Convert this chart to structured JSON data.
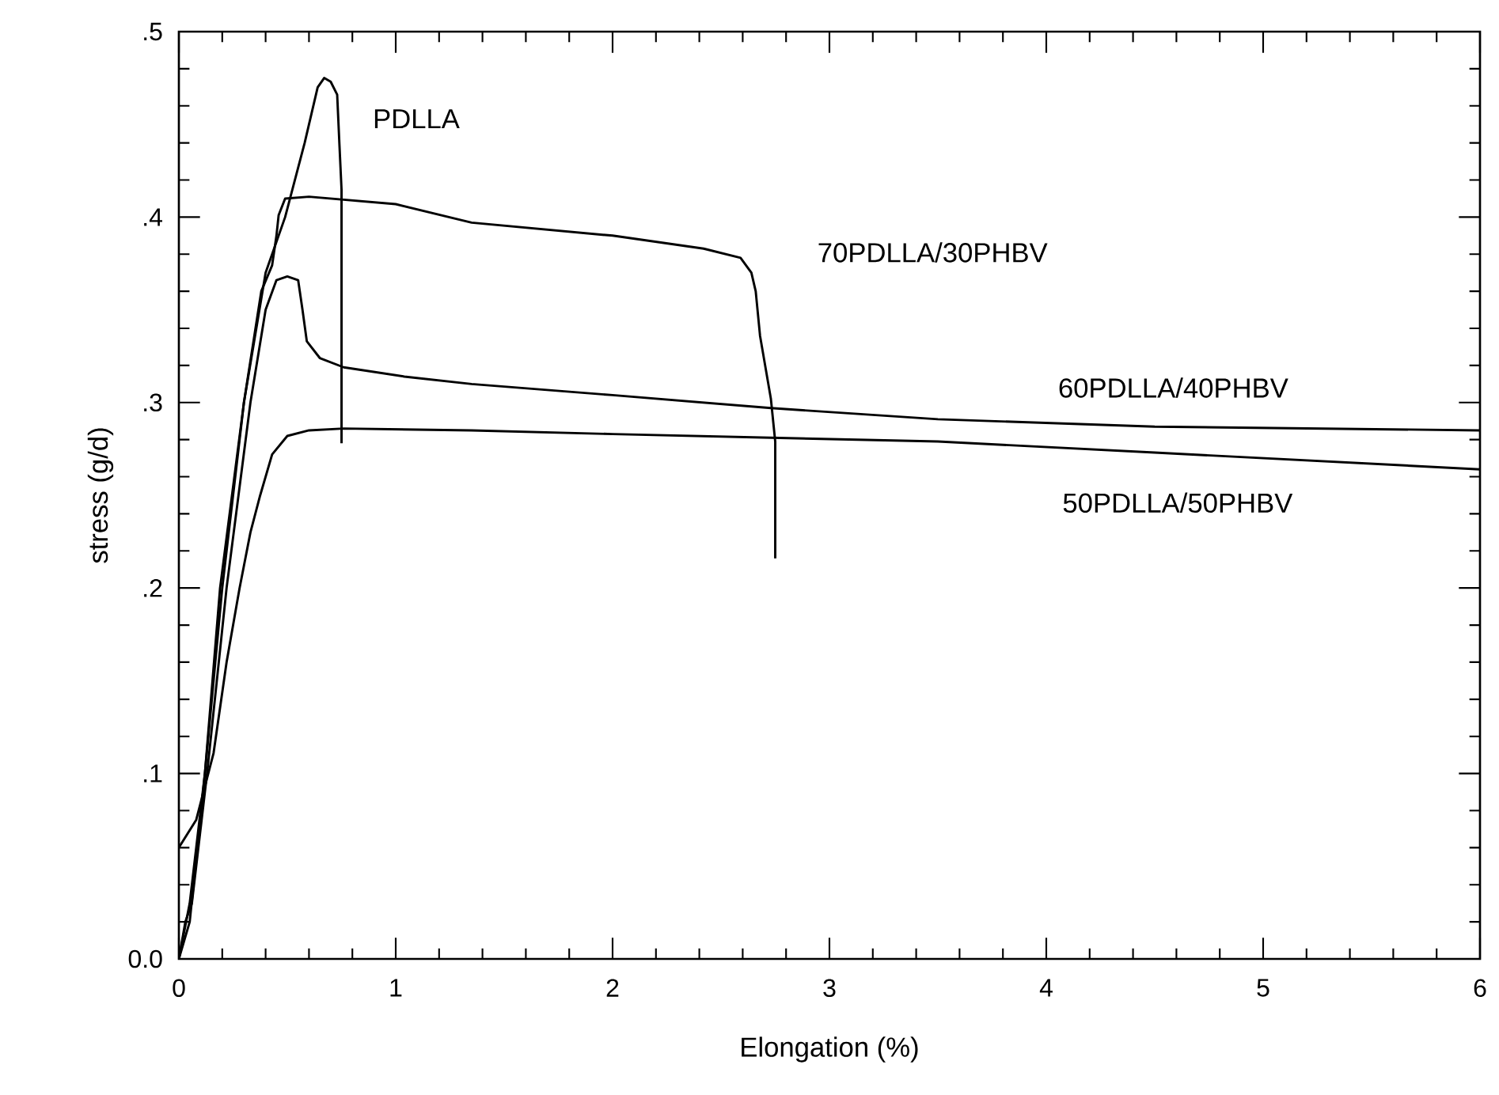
{
  "chart_data": {
    "type": "line",
    "xlabel": "Elongation (%)",
    "ylabel": "stress (g/d)",
    "xlim": [
      0,
      6
    ],
    "ylim": [
      0,
      0.5
    ],
    "xticks": [
      0,
      1,
      2,
      3,
      4,
      5,
      6
    ],
    "yticks": [
      {
        "value": 0,
        "label": "0.0"
      },
      {
        "value": 0.1,
        "label": ".1"
      },
      {
        "value": 0.2,
        "label": ".2"
      },
      {
        "value": 0.3,
        "label": ".3"
      },
      {
        "value": 0.4,
        "label": ".4"
      },
      {
        "value": 0.5,
        "label": ".5"
      }
    ],
    "series": [
      {
        "name": "PDLLA",
        "color": "#000000",
        "x": [
          0,
          0.05,
          0.12,
          0.19,
          0.3,
          0.4,
          0.49,
          0.58,
          0.64,
          0.67,
          0.7,
          0.73,
          0.74,
          0.75,
          0.75
        ],
        "values": [
          0,
          0.03,
          0.1,
          0.2,
          0.3,
          0.37,
          0.4,
          0.44,
          0.47,
          0.475,
          0.473,
          0.466,
          0.44,
          0.415,
          0.278
        ]
      },
      {
        "name": "70PDLLA/30PHBV",
        "color": "#000000",
        "x": [
          0,
          0.05,
          0.12,
          0.2,
          0.3,
          0.38,
          0.43,
          0.45,
          0.46,
          0.49,
          0.6,
          1.0,
          1.35,
          2.0,
          2.42,
          2.59,
          2.64,
          2.66,
          2.68,
          2.73,
          2.75,
          2.75
        ],
        "values": [
          0,
          0.02,
          0.1,
          0.2,
          0.3,
          0.36,
          0.374,
          0.39,
          0.401,
          0.41,
          0.411,
          0.407,
          0.397,
          0.39,
          0.383,
          0.378,
          0.37,
          0.36,
          0.336,
          0.302,
          0.279,
          0.216
        ]
      },
      {
        "name": "60PDLLA/40PHBV",
        "color": "#000000",
        "x": [
          0,
          0.03,
          0.06,
          0.13,
          0.22,
          0.33,
          0.4,
          0.45,
          0.5,
          0.55,
          0.57,
          0.59,
          0.65,
          0.76,
          1.04,
          1.35,
          2.0,
          2.73,
          3.5,
          4.5,
          6.0
        ],
        "values": [
          0,
          0.02,
          0.03,
          0.1,
          0.2,
          0.3,
          0.35,
          0.366,
          0.368,
          0.366,
          0.35,
          0.333,
          0.324,
          0.319,
          0.314,
          0.31,
          0.304,
          0.297,
          0.291,
          0.287,
          0.285
        ]
      },
      {
        "name": "50PDLLA/50PHBV",
        "color": "#000000",
        "x": [
          0,
          0.08,
          0.16,
          0.22,
          0.28,
          0.33,
          0.375,
          0.43,
          0.5,
          0.6,
          0.76,
          1.35,
          2.0,
          2.73,
          3.5,
          4.5,
          6.0
        ],
        "values": [
          0.06,
          0.075,
          0.111,
          0.16,
          0.2,
          0.23,
          0.25,
          0.272,
          0.282,
          0.285,
          0.286,
          0.285,
          0.283,
          0.281,
          0.279,
          0.273,
          0.264
        ]
      }
    ]
  }
}
